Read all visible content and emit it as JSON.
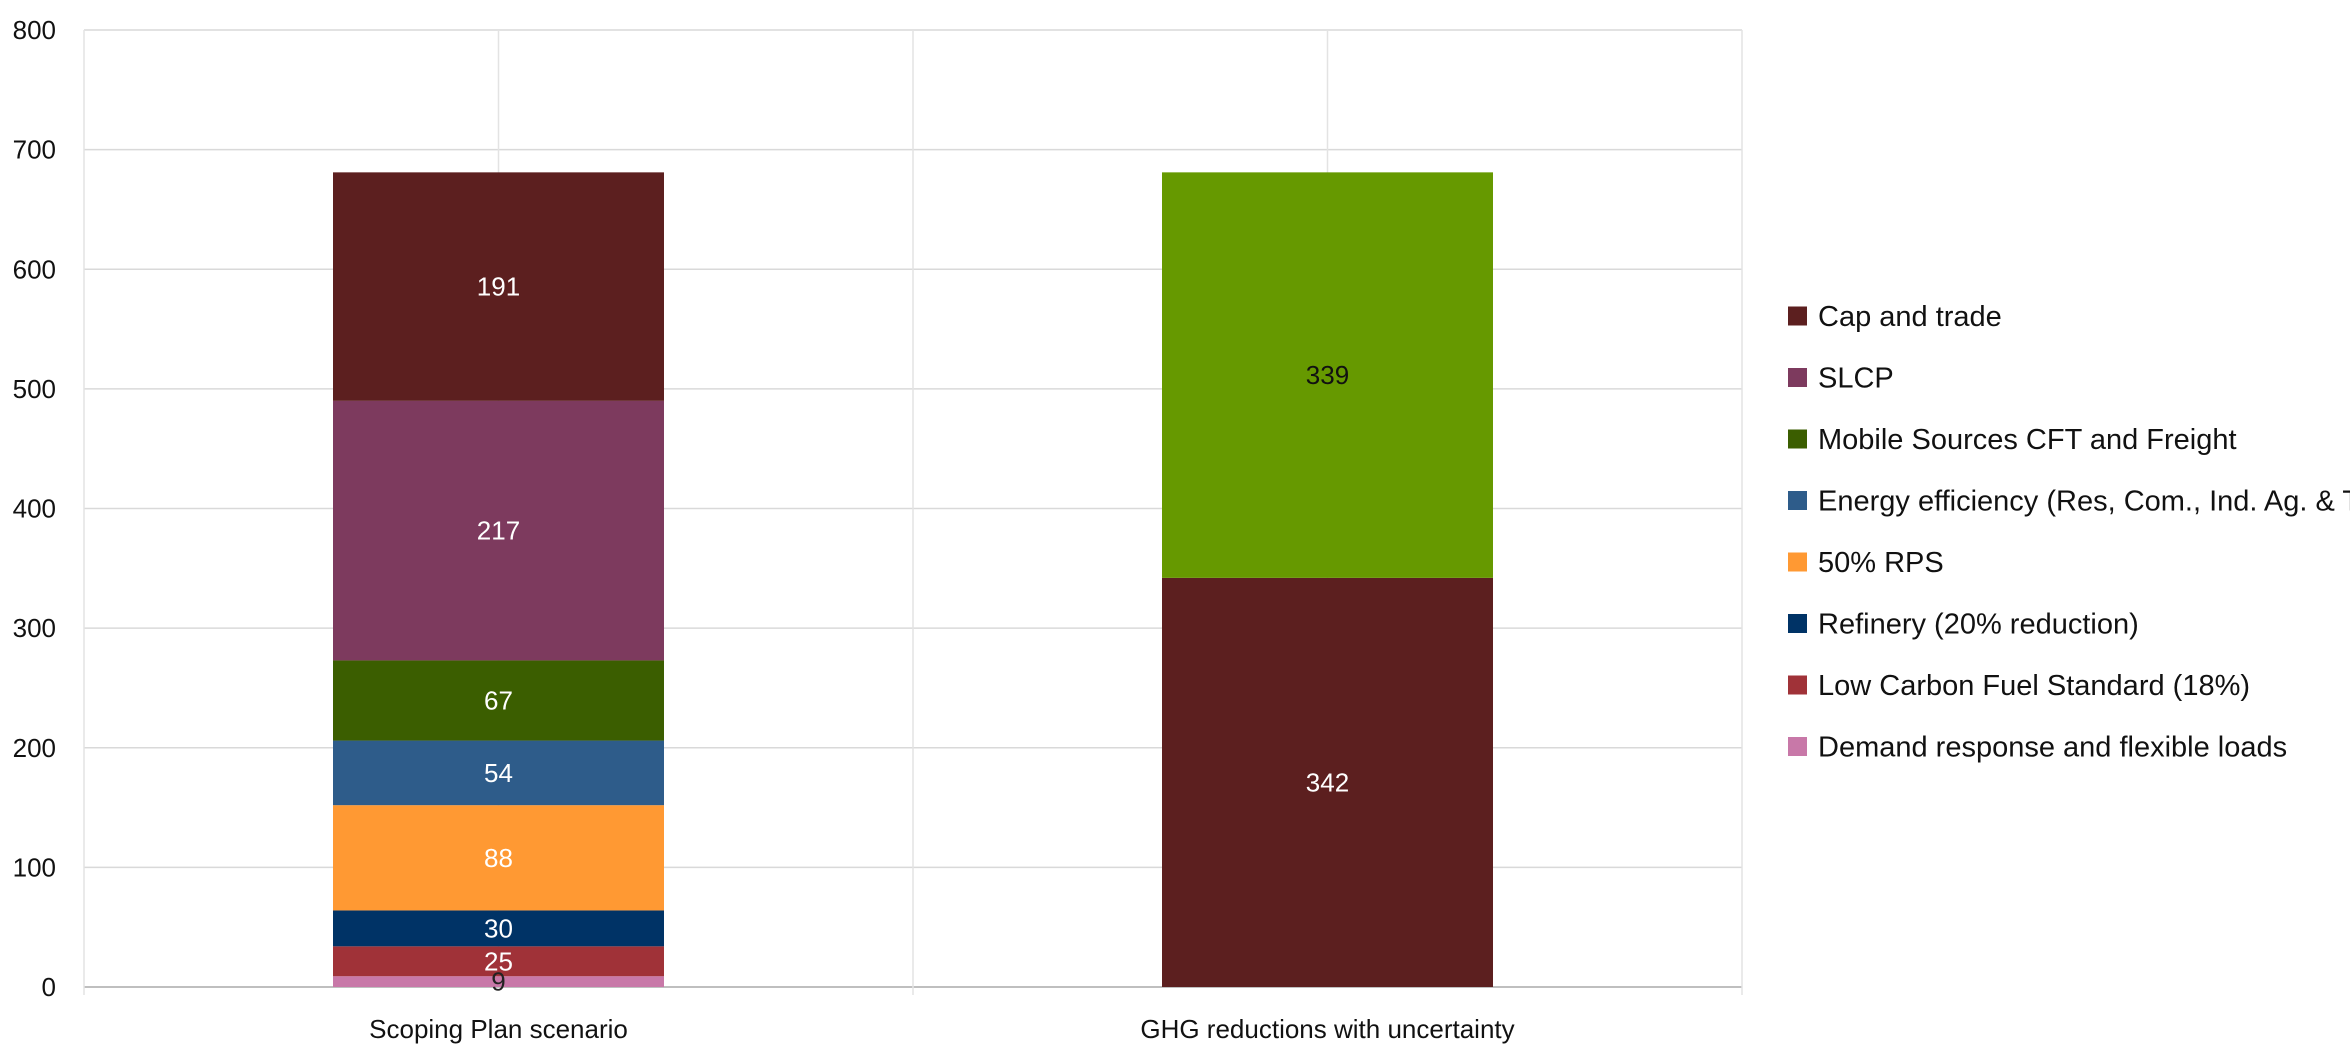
{
  "chart_data": {
    "type": "bar",
    "stacked": true,
    "categories": [
      "Scoping Plan scenario",
      "GHG reductions with uncertainty"
    ],
    "ylim": [
      0,
      800
    ],
    "yticks": [
      0,
      100,
      200,
      300,
      400,
      500,
      600,
      700,
      800
    ],
    "grid": true,
    "legend_position": "right",
    "series": [
      {
        "name": "Demand response and flexible loads",
        "color": "#c878a8",
        "values": [
          9,
          null
        ],
        "labels": [
          "9",
          ""
        ],
        "label_color": "#222222"
      },
      {
        "name": "Low Carbon Fuel Standard (18%)",
        "color": "#a03238",
        "values": [
          25,
          null
        ],
        "labels": [
          "25",
          ""
        ],
        "label_color": "#ffffff"
      },
      {
        "name": "Refinery (20%  reduction)",
        "color": "#003366",
        "values": [
          30,
          null
        ],
        "labels": [
          "30",
          ""
        ],
        "label_color": "#ffffff"
      },
      {
        "name": "50% RPS",
        "color": "#ff9933",
        "values": [
          88,
          null
        ],
        "labels": [
          "88",
          ""
        ],
        "label_color": "#ffffff"
      },
      {
        "name": "Energy efficiency (Res, Com., Ind. Ag. & TCU)",
        "color": "#2e5c8a",
        "values": [
          54,
          null
        ],
        "labels": [
          "54",
          ""
        ],
        "label_color": "#ffffff"
      },
      {
        "name": "Mobile Sources CFT and Freight",
        "color": "#3b5e00",
        "values": [
          67,
          null
        ],
        "labels": [
          "67",
          ""
        ],
        "label_color": "#ffffff"
      },
      {
        "name": "SLCP",
        "color": "#7d3a5e",
        "values": [
          217,
          null
        ],
        "labels": [
          "217",
          ""
        ],
        "label_color": "#ffffff"
      },
      {
        "name": "Cap and trade",
        "color": "#5c1f1f",
        "values": [
          191,
          342
        ],
        "labels": [
          "191",
          "342"
        ],
        "label_color": "#ffffff"
      },
      {
        "name": "",
        "color": "#669900",
        "values": [
          null,
          339
        ],
        "labels": [
          "",
          "339"
        ],
        "label_color": "#111111",
        "in_legend": false
      }
    ],
    "stack_order_second_bar": [
      "",
      "Cap and trade"
    ],
    "legend_order": [
      "Cap and trade",
      "SLCP",
      "Mobile Sources CFT and Freight",
      "Energy efficiency (Res, Com., Ind. Ag. & TCU)",
      "50% RPS",
      "Refinery (20%  reduction)",
      "Low Carbon Fuel Standard (18%)",
      "Demand response and flexible loads"
    ]
  }
}
